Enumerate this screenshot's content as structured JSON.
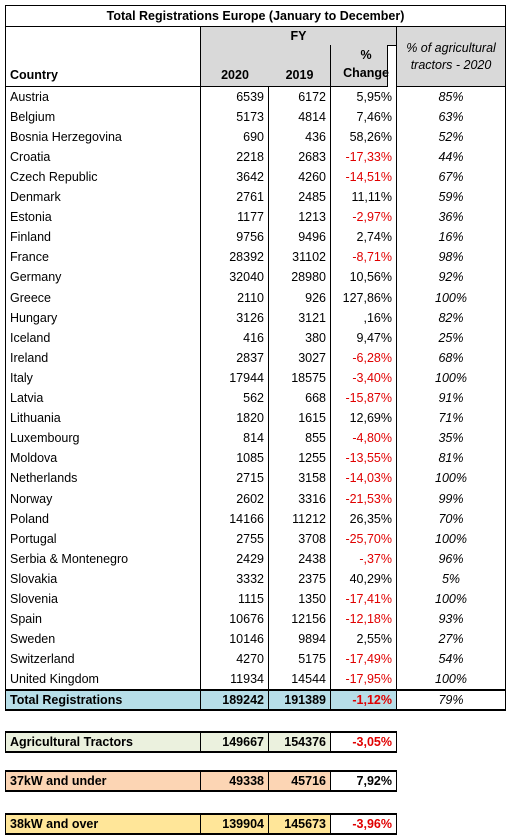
{
  "header": {
    "title": "Total Registrations Europe (January to December)",
    "group": "FY",
    "country": "Country",
    "y2020": "2020",
    "y2019": "2019",
    "change": "% Change",
    "share": "% of agricultural tractors - 2020"
  },
  "table": {
    "rows": [
      [
        "Austria",
        6539,
        6172,
        "5,95%",
        "85%"
      ],
      [
        "Belgium",
        5173,
        4814,
        "7,46%",
        "63%"
      ],
      [
        "Bosnia Herzegovina",
        690,
        436,
        "58,26%",
        "52%"
      ],
      [
        "Croatia",
        2218,
        2683,
        "-17,33%",
        "44%"
      ],
      [
        "Czech Republic",
        3642,
        4260,
        "-14,51%",
        "67%"
      ],
      [
        "Denmark",
        2761,
        2485,
        "11,11%",
        "59%"
      ],
      [
        "Estonia",
        1177,
        1213,
        "-2,97%",
        "36%"
      ],
      [
        "Finland",
        9756,
        9496,
        "2,74%",
        "16%"
      ],
      [
        "France",
        28392,
        31102,
        "-8,71%",
        "98%"
      ],
      [
        "Germany",
        32040,
        28980,
        "10,56%",
        "92%"
      ],
      [
        "Greece",
        2110,
        926,
        "127,86%",
        "100%"
      ],
      [
        "Hungary",
        3126,
        3121,
        ",16%",
        "82%"
      ],
      [
        "Iceland",
        416,
        380,
        "9,47%",
        "25%"
      ],
      [
        "Ireland",
        2837,
        3027,
        "-6,28%",
        "68%"
      ],
      [
        "Italy",
        17944,
        18575,
        "-3,40%",
        "100%"
      ],
      [
        "Latvia",
        562,
        668,
        "-15,87%",
        "91%"
      ],
      [
        "Lithuania",
        1820,
        1615,
        "12,69%",
        "71%"
      ],
      [
        "Luxembourg",
        814,
        855,
        "-4,80%",
        "35%"
      ],
      [
        "Moldova",
        1085,
        1255,
        "-13,55%",
        "81%"
      ],
      [
        "Netherlands",
        2715,
        3158,
        "-14,03%",
        "100%"
      ],
      [
        "Norway",
        2602,
        3316,
        "-21,53%",
        "99%"
      ],
      [
        "Poland",
        14166,
        11212,
        "26,35%",
        "70%"
      ],
      [
        "Portugal",
        2755,
        3708,
        "-25,70%",
        "100%"
      ],
      [
        "Serbia & Montenegro",
        2429,
        2438,
        "-,37%",
        "96%"
      ],
      [
        "Slovakia",
        3332,
        2375,
        "40,29%",
        "5%"
      ],
      [
        "Slovenia",
        1115,
        1350,
        "-17,41%",
        "100%"
      ],
      [
        "Spain",
        10676,
        12156,
        "-12,18%",
        "93%"
      ],
      [
        "Sweden",
        10146,
        9894,
        "2,55%",
        "27%"
      ],
      [
        "Switzerland",
        4270,
        5175,
        "-17,49%",
        "54%"
      ],
      [
        "United Kingdom",
        11934,
        14544,
        "-17,95%",
        "100%"
      ]
    ],
    "total": [
      "Total Registrations",
      189242,
      191389,
      "-1,12%",
      "79%"
    ]
  },
  "summary": {
    "rows": [
      [
        "Agricultural Tractors",
        149667,
        154376,
        "-3,05%"
      ],
      [
        "37kW and under",
        49338,
        45716,
        "7,92%"
      ],
      [
        "38kW and over",
        139904,
        145673,
        "-3,96%"
      ]
    ]
  }
}
